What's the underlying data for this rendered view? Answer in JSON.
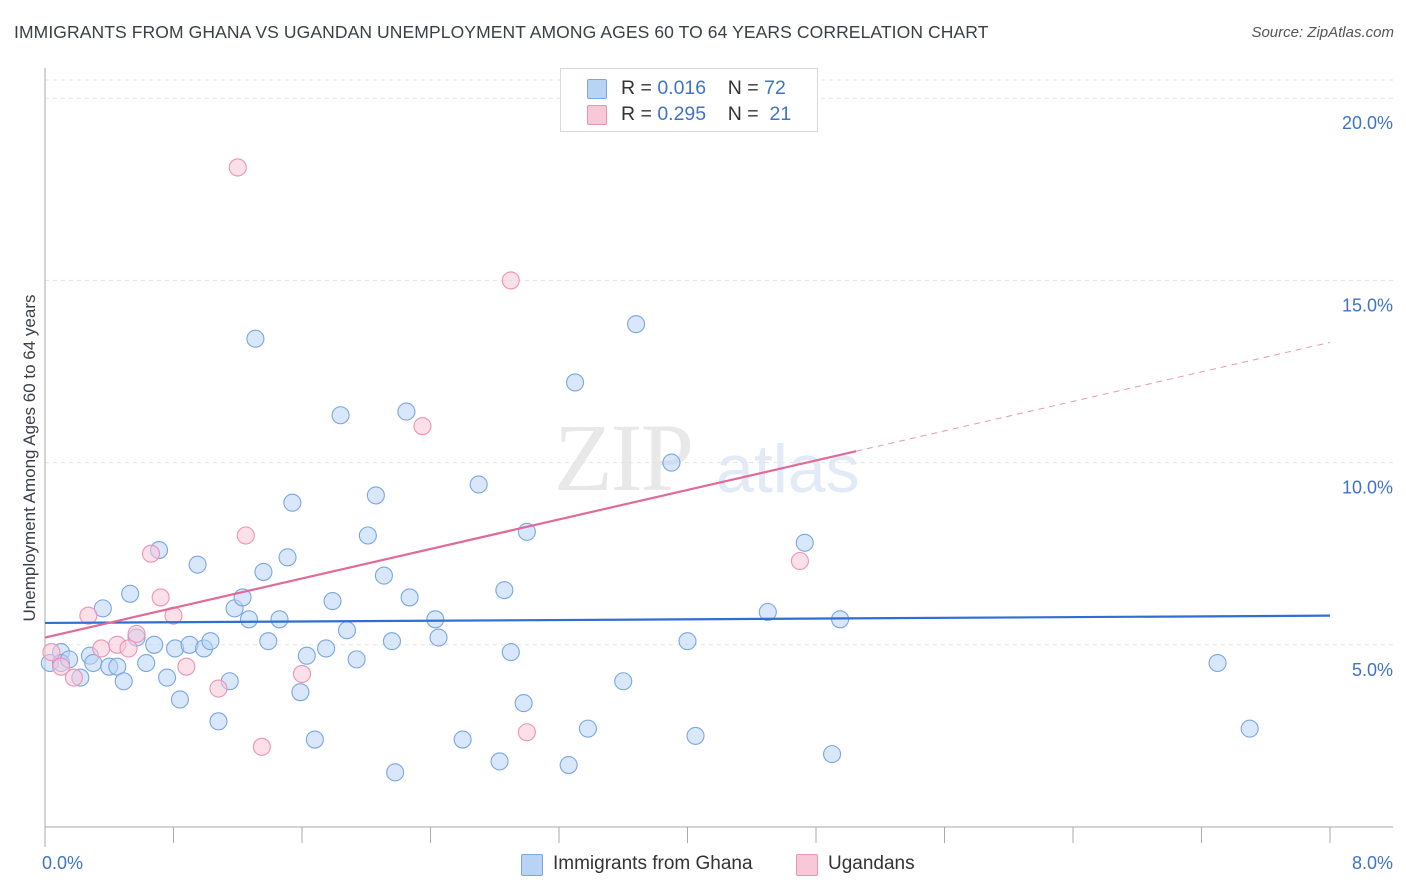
{
  "title": "IMMIGRANTS FROM GHANA VS UGANDAN UNEMPLOYMENT AMONG AGES 60 TO 64 YEARS CORRELATION CHART",
  "source": "Source: ZipAtlas.com",
  "watermark": {
    "zip": "ZIP",
    "atlas": "atlas"
  },
  "legend": {
    "rows": [
      {
        "r_label": "R = ",
        "r_value": "0.016",
        "n_label": "N = ",
        "n_value": "72"
      },
      {
        "r_label": "R = ",
        "r_value": "0.295",
        "n_label": "N = ",
        "n_value": "21"
      }
    ]
  },
  "colors": {
    "blue_fill": "#b9d3f5",
    "blue_edge": "#7aa6e3",
    "blue_line": "#2f6fd1",
    "pink_fill": "#f8c7d8",
    "pink_edge": "#ee93b3",
    "pink_line": "#e06a98",
    "grid": "#e3e3e3",
    "axis_label": "#3f73c9"
  },
  "chart_data": {
    "type": "scatter",
    "title": "IMMIGRANTS FROM GHANA VS UGANDAN UNEMPLOYMENT AMONG AGES 60 TO 64 YEARS CORRELATION CHART",
    "xlabel": "",
    "ylabel": "Unemployment Among Ages 60 to 64 years",
    "xlim": [
      0,
      8
    ],
    "ylim": [
      0,
      20.5
    ],
    "x_tick_labels": [
      "0.0%",
      "8.0%"
    ],
    "y_ticks": [
      5,
      10,
      15,
      20
    ],
    "y_tick_labels": [
      "5.0%",
      "10.0%",
      "15.0%",
      "20.0%"
    ],
    "grid": true,
    "legend_position": "top-center",
    "series": [
      {
        "name": "Immigrants from Ghana",
        "color": "#b9d3f5",
        "trend": {
          "x": [
            0,
            8
          ],
          "y": [
            5.6,
            5.8
          ],
          "solid_to": 8
        },
        "points": [
          [
            0.03,
            4.5
          ],
          [
            0.1,
            4.8
          ],
          [
            0.1,
            4.5
          ],
          [
            0.15,
            4.6
          ],
          [
            0.22,
            4.1
          ],
          [
            0.28,
            4.7
          ],
          [
            0.3,
            4.5
          ],
          [
            0.36,
            6.0
          ],
          [
            0.4,
            4.4
          ],
          [
            0.45,
            4.4
          ],
          [
            0.49,
            4.0
          ],
          [
            0.53,
            6.4
          ],
          [
            0.57,
            5.2
          ],
          [
            0.63,
            4.5
          ],
          [
            0.68,
            5.0
          ],
          [
            0.71,
            7.6
          ],
          [
            0.76,
            4.1
          ],
          [
            0.81,
            4.9
          ],
          [
            0.84,
            3.5
          ],
          [
            0.9,
            5.0
          ],
          [
            0.95,
            7.2
          ],
          [
            0.99,
            4.9
          ],
          [
            1.03,
            5.1
          ],
          [
            1.08,
            2.9
          ],
          [
            1.15,
            4.0
          ],
          [
            1.18,
            6.0
          ],
          [
            1.23,
            6.3
          ],
          [
            1.27,
            5.7
          ],
          [
            1.31,
            13.4
          ],
          [
            1.36,
            7.0
          ],
          [
            1.39,
            5.1
          ],
          [
            1.46,
            5.7
          ],
          [
            1.51,
            7.4
          ],
          [
            1.54,
            8.9
          ],
          [
            1.59,
            3.7
          ],
          [
            1.63,
            4.7
          ],
          [
            1.68,
            2.4
          ],
          [
            1.75,
            4.9
          ],
          [
            1.79,
            6.2
          ],
          [
            1.84,
            11.3
          ],
          [
            1.88,
            5.4
          ],
          [
            1.94,
            4.6
          ],
          [
            2.01,
            8.0
          ],
          [
            2.06,
            9.1
          ],
          [
            2.11,
            6.9
          ],
          [
            2.18,
            1.5
          ],
          [
            2.16,
            5.1
          ],
          [
            2.25,
            11.4
          ],
          [
            2.27,
            6.3
          ],
          [
            2.43,
            5.7
          ],
          [
            2.45,
            5.2
          ],
          [
            2.6,
            2.4
          ],
          [
            2.7,
            9.4
          ],
          [
            2.83,
            1.8
          ],
          [
            2.86,
            6.5
          ],
          [
            2.9,
            4.8
          ],
          [
            2.98,
            3.4
          ],
          [
            3.0,
            8.1
          ],
          [
            3.26,
            1.7
          ],
          [
            3.3,
            12.2
          ],
          [
            3.38,
            2.7
          ],
          [
            3.6,
            4.0
          ],
          [
            3.68,
            13.8
          ],
          [
            3.9,
            10.0
          ],
          [
            4.0,
            5.1
          ],
          [
            4.05,
            2.5
          ],
          [
            4.5,
            5.9
          ],
          [
            4.73,
            7.8
          ],
          [
            4.9,
            2.0
          ],
          [
            4.95,
            5.7
          ],
          [
            7.3,
            4.5
          ],
          [
            7.5,
            2.7
          ]
        ]
      },
      {
        "name": "Ugandans",
        "color": "#f8c7d8",
        "trend": {
          "x": [
            0,
            8
          ],
          "y": [
            5.2,
            13.3
          ],
          "solid_to": 5.05
        },
        "points": [
          [
            0.04,
            4.8
          ],
          [
            0.1,
            4.4
          ],
          [
            0.18,
            4.1
          ],
          [
            0.27,
            5.8
          ],
          [
            0.35,
            4.9
          ],
          [
            0.45,
            5.0
          ],
          [
            0.52,
            4.9
          ],
          [
            0.57,
            5.3
          ],
          [
            0.66,
            7.5
          ],
          [
            0.72,
            6.3
          ],
          [
            0.8,
            5.8
          ],
          [
            0.88,
            4.4
          ],
          [
            1.08,
            3.8
          ],
          [
            1.2,
            18.1
          ],
          [
            1.25,
            8.0
          ],
          [
            1.35,
            2.2
          ],
          [
            1.6,
            4.2
          ],
          [
            2.35,
            11.0
          ],
          [
            2.9,
            15.0
          ],
          [
            3.0,
            2.6
          ],
          [
            4.7,
            7.3
          ]
        ]
      }
    ]
  },
  "bottom_legend": [
    {
      "label": "Immigrants from Ghana"
    },
    {
      "label": "Ugandans"
    }
  ]
}
